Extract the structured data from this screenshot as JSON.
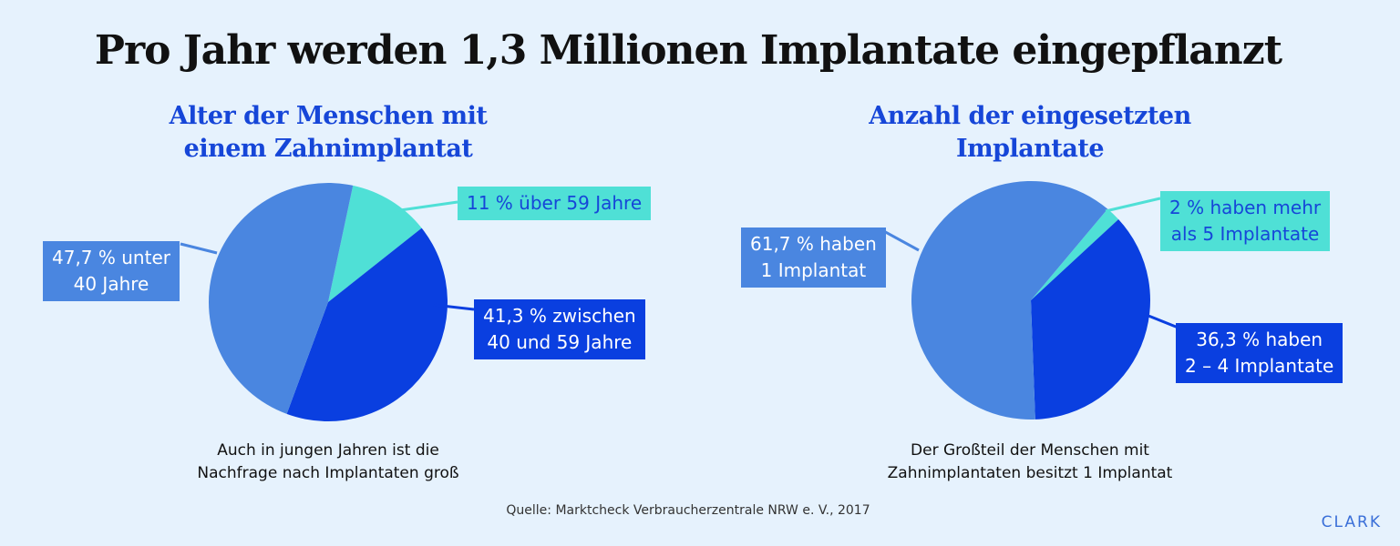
{
  "title": "Pro Jahr werden 1,3 Millionen Implantate eingepflanzt",
  "source": "Quelle: Marktcheck Verbraucherzentrale NRW e. V., 2017",
  "brand": "CLARK",
  "colors": {
    "background": "#e6f2fd",
    "medium_blue": "#4a86e0",
    "dark_blue": "#0a3fe0",
    "turquoise": "#4fe0d6"
  },
  "chart_data": [
    {
      "type": "pie",
      "title": "Alter der Menschen mit\neinem Zahnimplantat",
      "caption": "Auch in jungen Jahren ist die\nNachfrage nach Implantaten groß",
      "categories": [
        "11 % über 59 Jahre",
        "41,3 % zwischen\n40 und 59 Jahre",
        "47,7 % unter\n40 Jahre"
      ],
      "values": [
        11,
        41.3,
        47.7
      ],
      "colors": [
        "#4fe0d6",
        "#0a3fe0",
        "#4a86e0"
      ]
    },
    {
      "type": "pie",
      "title": "Anzahl der eingesetzten\nImplantate",
      "caption": "Der Großteil der Menschen mit\nZahnimplantaten besitzt 1 Implantat",
      "categories": [
        "2 % haben mehr\nals 5 Implantate",
        "36,3 % haben\n2 – 4 Implantate",
        "61,7 % haben\n1 Implantat"
      ],
      "values": [
        2,
        36.3,
        61.7
      ],
      "colors": [
        "#4fe0d6",
        "#0a3fe0",
        "#4a86e0"
      ]
    }
  ]
}
